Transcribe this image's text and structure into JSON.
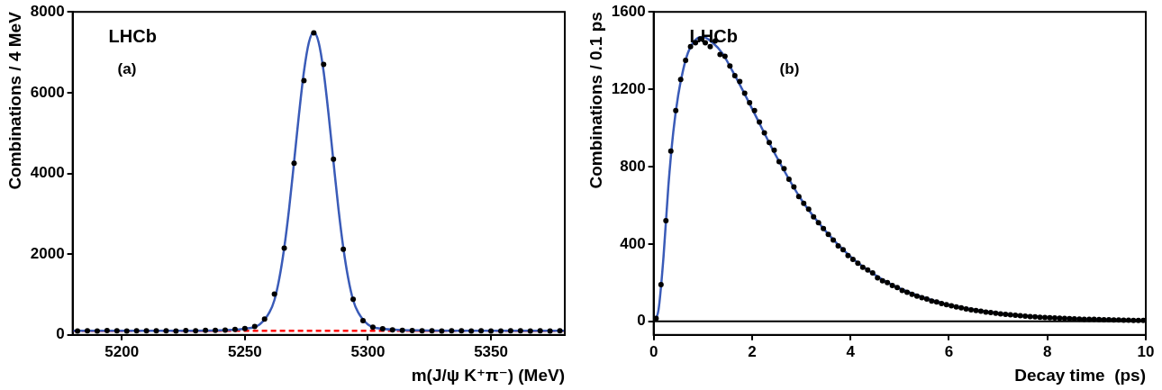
{
  "chart_data": [
    {
      "type": "scatter",
      "x_label": "m(J/ψ K⁺π⁻) (MeV)",
      "y_label": "Combinations / 4 MeV",
      "annotations": [
        "LHCb",
        "(a)"
      ],
      "xlim": [
        5180,
        5380
      ],
      "xticks": [
        5200,
        5250,
        5300,
        5350
      ],
      "ylim": [
        0,
        8000
      ],
      "yticks": [
        0,
        2000,
        4000,
        6000,
        8000
      ],
      "series": [
        {
          "type": "scatter",
          "marker": "circle",
          "color": "#000000",
          "x": [
            5182,
            5186,
            5190,
            5194,
            5198,
            5202,
            5206,
            5210,
            5214,
            5218,
            5222,
            5226,
            5230,
            5234,
            5238,
            5242,
            5246,
            5250,
            5254,
            5258,
            5262,
            5266,
            5270,
            5274,
            5278,
            5282,
            5286,
            5290,
            5294,
            5298,
            5302,
            5306,
            5310,
            5314,
            5318,
            5322,
            5326,
            5330,
            5334,
            5338,
            5342,
            5346,
            5350,
            5354,
            5358,
            5362,
            5366,
            5370,
            5374,
            5378
          ],
          "values": [
            95,
            102,
            98,
            105,
            100,
            97,
            103,
            99,
            104,
            101,
            98,
            106,
            102,
            110,
            115,
            120,
            135,
            160,
            210,
            390,
            1010,
            2150,
            4250,
            6300,
            7480,
            6700,
            4350,
            2120,
            880,
            350,
            190,
            150,
            125,
            112,
            108,
            104,
            100,
            97,
            103,
            99,
            95,
            101,
            98,
            96,
            102,
            99,
            94,
            100,
            97,
            99
          ]
        },
        {
          "type": "line",
          "color": "#3a5bb8",
          "x": [
            5180,
            5200,
            5220,
            5240,
            5250,
            5256,
            5260,
            5262,
            5264,
            5266,
            5268,
            5270,
            5272,
            5274,
            5276,
            5278,
            5280,
            5282,
            5284,
            5286,
            5288,
            5290,
            5292,
            5294,
            5296,
            5300,
            5306,
            5320,
            5340,
            5360,
            5380
          ],
          "values": [
            100,
            100,
            102,
            115,
            150,
            260,
            560,
            860,
            1400,
            2160,
            3140,
            4290,
            5470,
            6520,
            7240,
            7500,
            7240,
            6520,
            5470,
            4290,
            3140,
            2160,
            1400,
            860,
            560,
            260,
            150,
            110,
            100,
            100,
            100
          ]
        },
        {
          "type": "line",
          "line_style": "dashed",
          "color": "#ff0000",
          "x": [
            5180,
            5380
          ],
          "values": [
            100,
            100
          ]
        }
      ]
    },
    {
      "type": "scatter",
      "x_label": "Decay time  (ps)",
      "y_label": "Combinations / 0.1 ps",
      "annotations": [
        "LHCb",
        "(b)"
      ],
      "xlim": [
        0,
        10
      ],
      "xticks": [
        0,
        2,
        4,
        6,
        8,
        10
      ],
      "ylim": [
        -70,
        1600
      ],
      "yticks": [
        0,
        400,
        800,
        1200,
        1600
      ],
      "series": [
        {
          "type": "scatter",
          "marker": "circle",
          "color": "#000000",
          "x": [
            0.05,
            0.15,
            0.25,
            0.35,
            0.45,
            0.55,
            0.65,
            0.75,
            0.85,
            0.95,
            1.05,
            1.15,
            1.25,
            1.35,
            1.45,
            1.55,
            1.65,
            1.75,
            1.85,
            1.95,
            2.05,
            2.15,
            2.25,
            2.35,
            2.45,
            2.55,
            2.65,
            2.75,
            2.85,
            2.95,
            3.05,
            3.15,
            3.25,
            3.35,
            3.45,
            3.55,
            3.65,
            3.75,
            3.85,
            3.95,
            4.05,
            4.15,
            4.25,
            4.35,
            4.45,
            4.55,
            4.65,
            4.75,
            4.85,
            4.95,
            5.05,
            5.15,
            5.25,
            5.35,
            5.45,
            5.55,
            5.65,
            5.75,
            5.85,
            5.95,
            6.05,
            6.15,
            6.25,
            6.35,
            6.45,
            6.55,
            6.65,
            6.75,
            6.85,
            6.95,
            7.05,
            7.15,
            7.25,
            7.35,
            7.45,
            7.55,
            7.65,
            7.75,
            7.85,
            7.95,
            8.05,
            8.15,
            8.25,
            8.35,
            8.45,
            8.55,
            8.65,
            8.75,
            8.85,
            8.95,
            9.05,
            9.15,
            9.25,
            9.35,
            9.45,
            9.55,
            9.65,
            9.75,
            9.85,
            9.95
          ],
          "values": [
            15,
            190,
            520,
            880,
            1090,
            1250,
            1350,
            1420,
            1440,
            1460,
            1440,
            1420,
            1450,
            1380,
            1370,
            1320,
            1270,
            1240,
            1180,
            1130,
            1090,
            1030,
            975,
            925,
            885,
            825,
            790,
            735,
            695,
            645,
            610,
            580,
            540,
            510,
            480,
            450,
            420,
            390,
            370,
            340,
            320,
            300,
            280,
            265,
            250,
            225,
            210,
            200,
            185,
            175,
            160,
            150,
            140,
            130,
            122,
            115,
            105,
            100,
            92,
            86,
            80,
            75,
            70,
            64,
            60,
            56,
            52,
            48,
            45,
            42,
            38,
            36,
            34,
            31,
            29,
            27,
            25,
            23,
            21,
            20,
            19,
            17,
            16,
            15,
            14,
            13,
            12,
            11,
            10,
            10,
            9,
            8,
            8,
            7,
            7,
            6,
            6,
            5,
            5,
            5
          ]
        },
        {
          "type": "line",
          "color": "#3a5bb8",
          "x": [
            0,
            0.1,
            0.2,
            0.3,
            0.4,
            0.5,
            0.6,
            0.7,
            0.8,
            0.9,
            1.0,
            1.2,
            1.4,
            1.6,
            1.8,
            2.0,
            2.5,
            3,
            3.5,
            4,
            4.5,
            5,
            6,
            7,
            8,
            9,
            10
          ],
          "values": [
            0,
            60,
            330,
            700,
            980,
            1170,
            1300,
            1390,
            1440,
            1465,
            1470,
            1440,
            1385,
            1295,
            1200,
            1100,
            850,
            630,
            465,
            335,
            240,
            170,
            85,
            42,
            20,
            10,
            5
          ]
        }
      ]
    }
  ]
}
